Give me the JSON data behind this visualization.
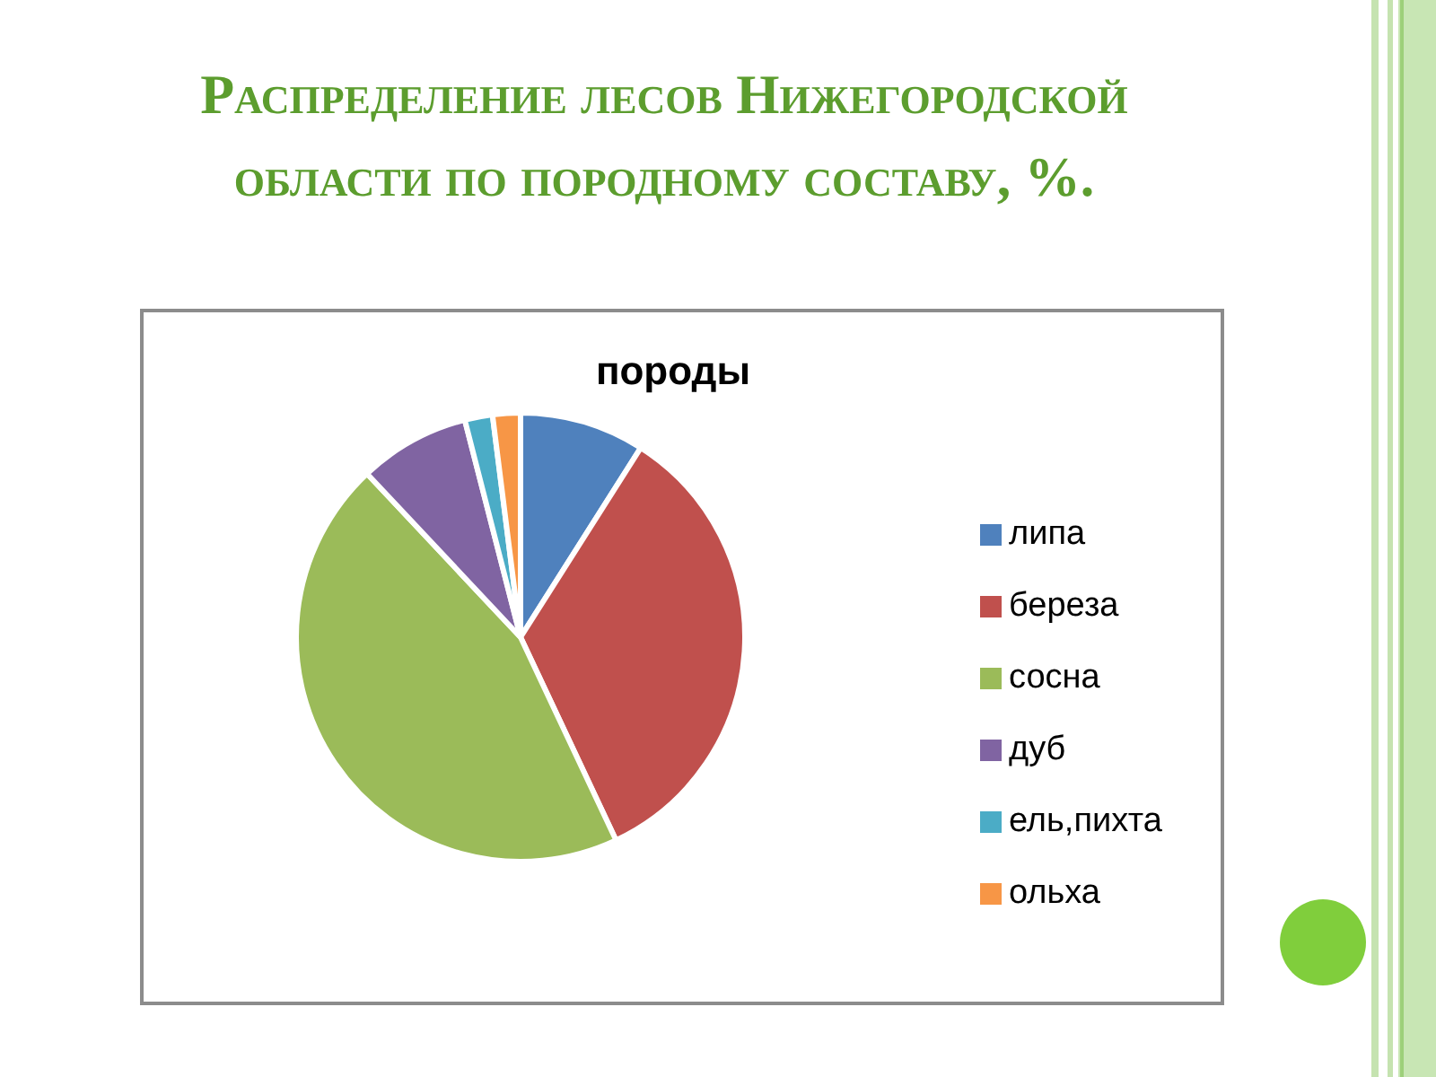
{
  "chart_data": {
    "type": "pie",
    "title": "Распределение лесов Нижегородской области по породному составу, %.",
    "subtitle": "породы",
    "categories": [
      "липа",
      "береза",
      "сосна",
      "дуб",
      "ель,пихта",
      "ольха"
    ],
    "values": [
      9,
      34,
      45,
      8,
      2,
      2
    ],
    "colors": [
      "#4f81bd",
      "#c0504d",
      "#9bbb59",
      "#8064a2",
      "#4bacc6",
      "#f79646"
    ],
    "legend": "right"
  }
}
